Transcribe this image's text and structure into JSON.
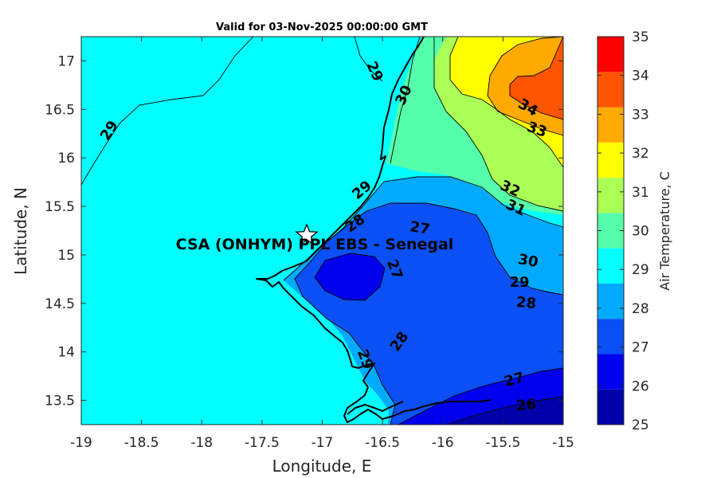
{
  "title": "Valid for 03-Nov-2025 00:00:00 GMT",
  "station": {
    "label": "CSA (ONHYM) PPL EBS  - Senegal",
    "lon": -17.12,
    "lat": 15.22,
    "marker_icon": "star-icon"
  },
  "map": {
    "xlabel": "Longitude, E",
    "ylabel": "Latitude, N",
    "xlim": [
      -19,
      -15
    ],
    "ylim": [
      13.25,
      17.25
    ],
    "x_ticks": [
      "-19",
      "-18.5",
      "-18",
      "-17.5",
      "-17",
      "-16.5",
      "-16",
      "-15.5",
      "-15"
    ],
    "y_ticks": [
      "13.5",
      "14",
      "14.5",
      "15",
      "15.5",
      "16",
      "16.5",
      "17"
    ]
  },
  "colorbar": {
    "label": "Air Temperature, C",
    "ticks": [
      "25",
      "26",
      "27",
      "28",
      "29",
      "30",
      "31",
      "32",
      "33",
      "34",
      "35"
    ],
    "range": [
      25,
      35
    ],
    "colors": [
      "#0000aa",
      "#0000ee",
      "#0a50f5",
      "#00aaff",
      "#00ffff",
      "#55ffaa",
      "#aaff55",
      "#ffff00",
      "#ffaa00",
      "#ff5500",
      "#ff0000"
    ]
  },
  "contour_labels": [
    "29",
    "29",
    "30",
    "29",
    "28",
    "27",
    "27",
    "28",
    "29",
    "34",
    "33",
    "32",
    "31",
    "30",
    "29",
    "28",
    "27",
    "26"
  ]
}
